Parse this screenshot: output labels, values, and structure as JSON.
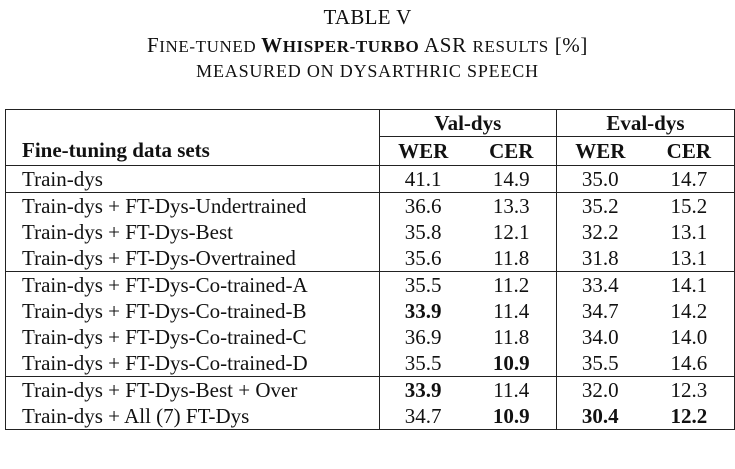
{
  "caption": {
    "table_number": "TABLE V",
    "line2": {
      "part1_big": "F",
      "part1_small": "INE-TUNED ",
      "bold_big": "W",
      "bold_small": "HISPER-TURBO",
      "part2": " ASR ",
      "part2_small": "RESULTS",
      "part3": " [%]"
    },
    "line3": "MEASURED ON DYSARTHRIC SPEECH"
  },
  "table": {
    "row_header": "Fine-tuning data sets",
    "groups": [
      "Val-dys",
      "Eval-dys"
    ],
    "metrics": [
      "WER",
      "CER",
      "WER",
      "CER"
    ],
    "rows": [
      {
        "name": "Train-dys",
        "values": [
          "41.1",
          "14.9",
          "35.0",
          "14.7"
        ]
      },
      {
        "name": "Train-dys + FT-Dys-Undertrained",
        "values": [
          "36.6",
          "13.3",
          "35.2",
          "15.2"
        ]
      },
      {
        "name": "Train-dys + FT-Dys-Best",
        "values": [
          "35.8",
          "12.1",
          "32.2",
          "13.1"
        ]
      },
      {
        "name": "Train-dys + FT-Dys-Overtrained",
        "values": [
          "35.6",
          "11.8",
          "31.8",
          "13.1"
        ]
      },
      {
        "name": "Train-dys + FT-Dys-Co-trained-A",
        "values": [
          "35.5",
          "11.2",
          "33.4",
          "14.1"
        ]
      },
      {
        "name": "Train-dys + FT-Dys-Co-trained-B",
        "values": [
          "33.9",
          "11.4",
          "34.7",
          "14.2"
        ]
      },
      {
        "name": "Train-dys + FT-Dys-Co-trained-C",
        "values": [
          "36.9",
          "11.8",
          "34.0",
          "14.0"
        ]
      },
      {
        "name": "Train-dys + FT-Dys-Co-trained-D",
        "values": [
          "35.5",
          "10.9",
          "35.5",
          "14.6"
        ]
      },
      {
        "name": "Train-dys + FT-Dys-Best + Over",
        "values": [
          "33.9",
          "11.4",
          "32.0",
          "12.3"
        ]
      },
      {
        "name": "Train-dys + All (7) FT-Dys",
        "values": [
          "34.7",
          "10.9",
          "30.4",
          "12.2"
        ]
      }
    ],
    "bold_cells": [
      [
        5,
        0
      ],
      [
        7,
        1
      ],
      [
        8,
        0
      ],
      [
        9,
        1
      ],
      [
        9,
        2
      ],
      [
        9,
        3
      ]
    ]
  }
}
